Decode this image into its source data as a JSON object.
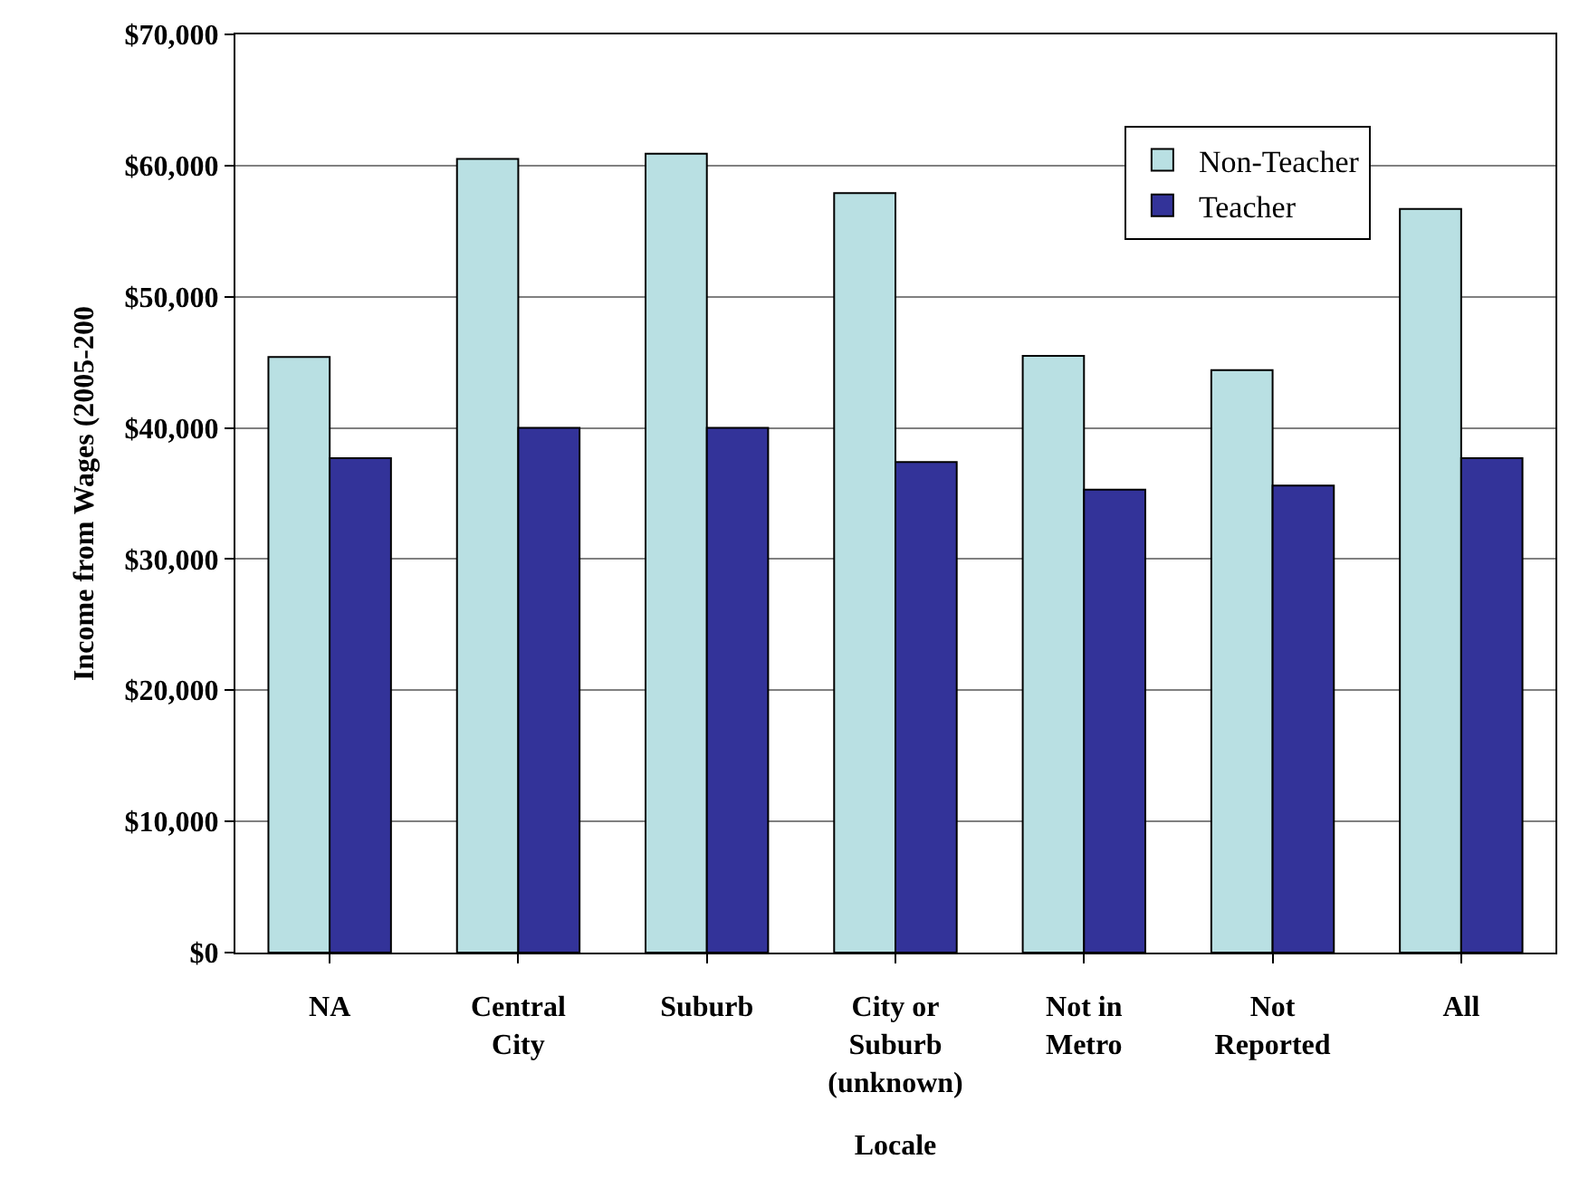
{
  "chart_data": {
    "type": "bar",
    "xlabel": "Locale",
    "ylabel": "Income from Wages (2005-200",
    "categories": [
      "NA",
      "Central City",
      "Suburb",
      "City or Suburb (unknown)",
      "Not in Metro",
      "Not Reported",
      "All"
    ],
    "series": [
      {
        "name": "Non-Teacher",
        "color": "#b9e0e3",
        "values": [
          45400,
          60500,
          60900,
          57900,
          45500,
          44400,
          56700
        ]
      },
      {
        "name": "Teacher",
        "color": "#333399",
        "values": [
          37700,
          40000,
          40000,
          37400,
          35300,
          35600,
          37700
        ]
      }
    ],
    "ylim": [
      0,
      70000
    ],
    "yticks": [
      {
        "value": 0,
        "label": "$0"
      },
      {
        "value": 10000,
        "label": "$10,000"
      },
      {
        "value": 20000,
        "label": "$20,000"
      },
      {
        "value": 30000,
        "label": "$30,000"
      },
      {
        "value": 40000,
        "label": "$40,000"
      },
      {
        "value": 50000,
        "label": "$50,000"
      },
      {
        "value": 60000,
        "label": "$60,000"
      },
      {
        "value": 70000,
        "label": "$70,000"
      }
    ],
    "grid": "y",
    "legend": "top right"
  }
}
